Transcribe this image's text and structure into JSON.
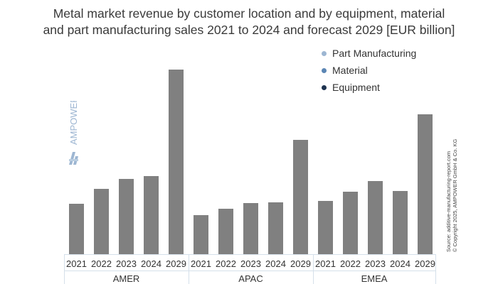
{
  "chart_data": {
    "type": "bar",
    "title_lines": [
      "Metal market revenue by customer location and by equipment, material",
      "and part manufacturing sales 2021 to 2024 and forecast 2029 [EUR billion]"
    ],
    "groups": [
      {
        "name": "AMER",
        "categories": [
          "2021",
          "2022",
          "2023",
          "2024",
          "2029"
        ],
        "values": [
          71,
          92,
          106,
          110,
          260
        ]
      },
      {
        "name": "APAC",
        "categories": [
          "2021",
          "2022",
          "2023",
          "2024",
          "2029"
        ],
        "values": [
          55,
          64,
          72,
          73,
          161
        ]
      },
      {
        "name": "EMEA",
        "categories": [
          "2021",
          "2022",
          "2023",
          "2024",
          "2029"
        ],
        "values": [
          75,
          88,
          103,
          89,
          197
        ]
      }
    ],
    "value_note": "relative heights; no y-axis shown",
    "ylim": [
      0,
      270
    ],
    "grid": false,
    "legend": [
      {
        "name": "Part Manufacturing",
        "color": "#9db6d2"
      },
      {
        "name": "Material",
        "color": "#5b86b4"
      },
      {
        "name": "Equipment",
        "color": "#1e3350"
      }
    ],
    "legend_position": "top-right",
    "bar_color": "#808080"
  },
  "source_lines": [
    "Source: additive-manufacturing-report.com",
    "© Copyright 2025, AMPOWER GmbH & Co. KG"
  ],
  "logo_text": "AMPOWER"
}
